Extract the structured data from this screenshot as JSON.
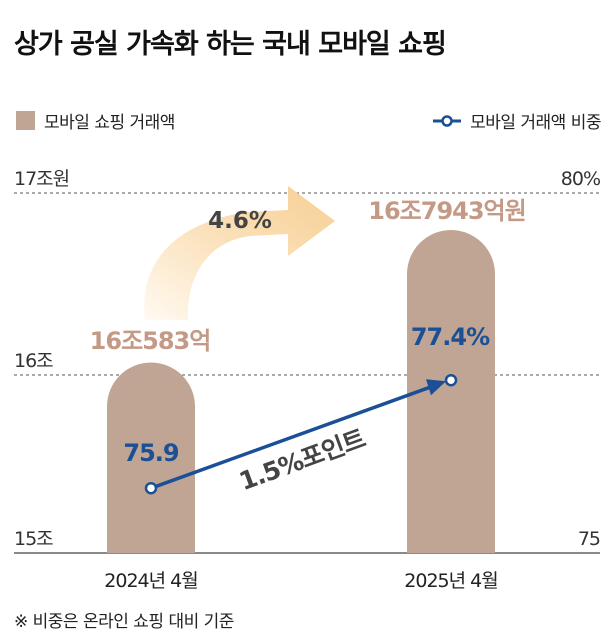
{
  "title": "상가 공실 가속화 하는 국내 모바일 쇼핑",
  "legend": {
    "bar_label": "모바일 쇼핑 거래액",
    "line_label": "모바일 거래액 비중"
  },
  "colors": {
    "bar": "#c0a595",
    "bar_label": "#c49a86",
    "line": "#1b4f96",
    "arrow_growth": "#f7cf92",
    "growth_text": "#444444",
    "axis_text": "#333333"
  },
  "chart_data": {
    "type": "bar",
    "categories": [
      "2024년 4월",
      "2025년 4월"
    ],
    "series": [
      {
        "name": "모바일 쇼핑 거래액",
        "axis": "left",
        "values": [
          16.0583,
          16.7943
        ],
        "labels": [
          "16조583억",
          "16조7943억원"
        ]
      },
      {
        "name": "모바일 거래액 비중",
        "type": "line",
        "axis": "right",
        "values": [
          75.9,
          77.4
        ],
        "labels": [
          "75.9",
          "77.4%"
        ]
      }
    ],
    "left_axis": {
      "ylim": [
        15,
        17
      ],
      "ticks": [
        "15조",
        "16조",
        "17조원"
      ]
    },
    "right_axis": {
      "ylim": [
        75,
        80
      ],
      "ticks": [
        "75",
        "80%"
      ]
    },
    "annotations": {
      "growth": "4.6%",
      "share_change": "1.5%포인트"
    },
    "grid": "dashed horizontal"
  },
  "footnote": "※ 비중은 온라인 쇼핑 대비 기준"
}
